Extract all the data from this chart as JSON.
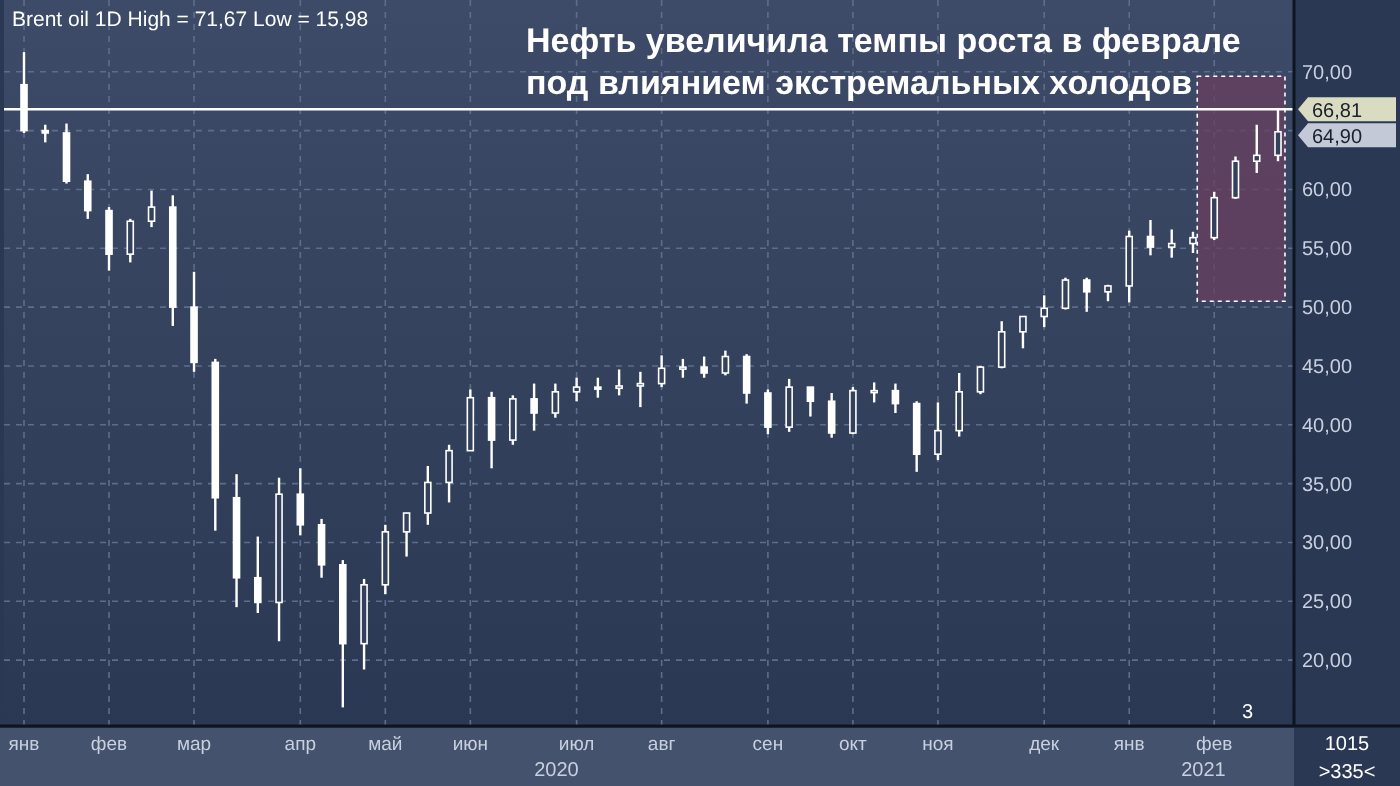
{
  "chart_data": {
    "type": "candlestick",
    "title": "Нефть увеличила темпы роста в феврале под влиянием экстремальных холодов",
    "categories": [
      "янв",
      null,
      null,
      null,
      "фев",
      null,
      null,
      null,
      "мар",
      null,
      null,
      null,
      null,
      "апр",
      null,
      null,
      null,
      "май",
      null,
      null,
      null,
      "июн",
      null,
      null,
      null,
      null,
      "июл",
      null,
      null,
      null,
      "авг",
      null,
      null,
      null,
      null,
      "сен",
      null,
      null,
      null,
      "окт",
      null,
      null,
      null,
      "ноя",
      null,
      null,
      null,
      null,
      "дек",
      null,
      null,
      null,
      "янв",
      null,
      null,
      null,
      "фев",
      null,
      null,
      null
    ],
    "ohlc": [
      [
        68.9,
        71.67,
        64.8,
        65.0
      ],
      [
        65.0,
        65.5,
        64.0,
        64.8
      ],
      [
        64.8,
        65.6,
        60.5,
        60.7
      ],
      [
        60.7,
        61.3,
        57.5,
        58.2
      ],
      [
        58.2,
        58.5,
        53.1,
        54.5
      ],
      [
        54.5,
        57.5,
        53.8,
        57.3
      ],
      [
        57.3,
        59.9,
        56.8,
        58.5
      ],
      [
        58.5,
        59.5,
        48.4,
        50.0
      ],
      [
        50.0,
        53.0,
        44.5,
        45.3
      ],
      [
        45.3,
        45.6,
        31.0,
        33.8
      ],
      [
        33.8,
        35.8,
        24.5,
        27.0
      ],
      [
        27.0,
        30.5,
        24.0,
        24.9
      ],
      [
        24.9,
        35.5,
        21.6,
        34.1
      ],
      [
        34.1,
        36.3,
        30.6,
        31.5
      ],
      [
        31.5,
        32.0,
        27.0,
        28.1
      ],
      [
        28.1,
        28.5,
        15.98,
        21.4
      ],
      [
        21.4,
        26.9,
        19.2,
        26.4
      ],
      [
        26.4,
        31.5,
        25.6,
        30.9
      ],
      [
        30.9,
        32.5,
        28.8,
        32.5
      ],
      [
        32.5,
        36.5,
        31.5,
        35.1
      ],
      [
        35.1,
        38.3,
        33.4,
        37.8
      ],
      [
        37.8,
        43.0,
        37.8,
        42.3
      ],
      [
        42.3,
        42.8,
        36.3,
        38.7
      ],
      [
        38.7,
        42.5,
        38.3,
        42.2
      ],
      [
        42.2,
        43.5,
        39.5,
        41.0
      ],
      [
        41.0,
        43.5,
        40.6,
        42.8
      ],
      [
        42.8,
        44.0,
        42.0,
        43.2
      ],
      [
        43.2,
        44.0,
        42.3,
        43.1
      ],
      [
        43.1,
        44.7,
        42.5,
        43.3
      ],
      [
        43.3,
        44.5,
        41.5,
        43.5
      ],
      [
        43.5,
        45.9,
        43.2,
        44.8
      ],
      [
        44.8,
        45.6,
        44.0,
        44.9
      ],
      [
        44.9,
        45.8,
        44.0,
        44.4
      ],
      [
        44.4,
        46.3,
        44.2,
        45.8
      ],
      [
        45.8,
        46.0,
        41.8,
        42.7
      ],
      [
        42.7,
        43.0,
        39.2,
        39.8
      ],
      [
        39.8,
        43.9,
        39.4,
        43.2
      ],
      [
        43.2,
        43.2,
        40.7,
        42.0
      ],
      [
        42.0,
        42.7,
        38.9,
        39.3
      ],
      [
        39.3,
        43.2,
        39.2,
        42.9
      ],
      [
        42.9,
        43.6,
        41.9,
        42.9
      ],
      [
        42.9,
        43.5,
        41.0,
        41.8
      ],
      [
        41.8,
        42.0,
        36.0,
        37.5
      ],
      [
        37.5,
        41.9,
        37.0,
        39.5
      ],
      [
        39.5,
        44.4,
        39.0,
        42.8
      ],
      [
        42.8,
        45.0,
        42.6,
        44.9
      ],
      [
        44.9,
        48.8,
        44.8,
        47.9
      ],
      [
        47.9,
        49.2,
        46.5,
        49.2
      ],
      [
        49.2,
        51.0,
        48.3,
        49.9
      ],
      [
        49.9,
        52.5,
        49.8,
        52.3
      ],
      [
        52.3,
        52.5,
        49.6,
        51.3
      ],
      [
        51.3,
        51.9,
        50.5,
        51.8
      ],
      [
        51.8,
        56.5,
        50.4,
        56.0
      ],
      [
        56.0,
        57.4,
        54.4,
        55.1
      ],
      [
        55.1,
        56.6,
        54.2,
        55.4
      ],
      [
        55.4,
        56.4,
        54.6,
        55.9
      ],
      [
        55.9,
        59.8,
        55.7,
        59.3
      ],
      [
        59.3,
        62.8,
        59.2,
        62.4
      ],
      [
        62.4,
        65.5,
        61.4,
        62.9
      ],
      [
        62.9,
        66.81,
        62.4,
        64.9
      ]
    ],
    "ylim": [
      14.4,
      76.1
    ],
    "yticks": [
      {
        "value": 20,
        "label": "20,00"
      },
      {
        "value": 25,
        "label": "25,00"
      },
      {
        "value": 30,
        "label": "30,00"
      },
      {
        "value": 35,
        "label": "35,00"
      },
      {
        "value": 40,
        "label": "40,00"
      },
      {
        "value": 45,
        "label": "45,00"
      },
      {
        "value": 50,
        "label": "50,00"
      },
      {
        "value": 55,
        "label": "55,00"
      },
      {
        "value": 60,
        "label": "60,00"
      },
      {
        "value": 65,
        "label": null
      },
      {
        "value": 70,
        "label": "70,00"
      }
    ],
    "grid": true,
    "ref_lines": [
      {
        "axis": "y",
        "value": 66.81,
        "label": "66,81",
        "color": "#ffffff"
      }
    ],
    "annotations": [
      "Brent oil 1D High = 71,67 Low = 15,98",
      "64,90",
      "2020",
      "2021",
      "3",
      "1015",
      ">335<"
    ]
  }
}
